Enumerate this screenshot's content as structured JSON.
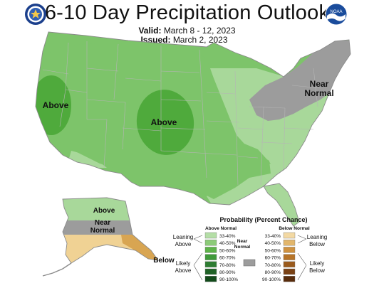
{
  "header": {
    "title": "6-10 Day Precipitation Outlook",
    "valid_label": "Valid:",
    "valid_value": "March 8 - 12, 2023",
    "issued_label": "Issued:",
    "issued_value": "March 2, 2023"
  },
  "logos": {
    "left": "doc-seal-icon",
    "right": "noaa-logo-icon",
    "right_text": "NOAA"
  },
  "map": {
    "labels": {
      "west_above": "Above",
      "central_above": "Above",
      "northeast_near": "Near",
      "northeast_normal": "Normal",
      "alaska_above": "Above",
      "alaska_near": "Near",
      "alaska_normal": "Normal",
      "alaska_below": "Below"
    },
    "colors": {
      "above_33_40": "#a8d89a",
      "above_40_50": "#7dc46a",
      "above_50_60": "#4faa3c",
      "near_normal": "#9c9c9c",
      "below_33_40": "#f0d294",
      "below_40_50": "#d8a552",
      "background": "#ffffff",
      "border": "#8a8a8a"
    }
  },
  "legend": {
    "title": "Probability (Percent Chance)",
    "above_header": "Above Normal",
    "below_header": "Below Normal",
    "leaning_above_1": "Leaning",
    "leaning_above_2": "Above",
    "likely_above_1": "Likely",
    "likely_above_2": "Above",
    "leaning_below_1": "Leaning",
    "leaning_below_2": "Below",
    "likely_below_1": "Likely",
    "likely_below_2": "Below",
    "near_1": "Near",
    "near_2": "Normal",
    "above_ranges": [
      "33-40%",
      "40-50%",
      "50-60%",
      "60-70%",
      "70-80%",
      "80-90%",
      "90-100%"
    ],
    "below_ranges": [
      "33-40%",
      "40-50%",
      "50-60%",
      "60-70%",
      "70-80%",
      "80-90%",
      "90-100%"
    ],
    "above_colors": [
      "#b4dea6",
      "#8ccb78",
      "#5db349",
      "#3f9a3a",
      "#2e7d32",
      "#1f6226",
      "#124a1a"
    ],
    "below_colors": [
      "#f3d9a3",
      "#e2b66b",
      "#cf9240",
      "#b77428",
      "#9a5a1c",
      "#7a4114",
      "#582c0c"
    ],
    "near_color": "#9c9c9c"
  }
}
